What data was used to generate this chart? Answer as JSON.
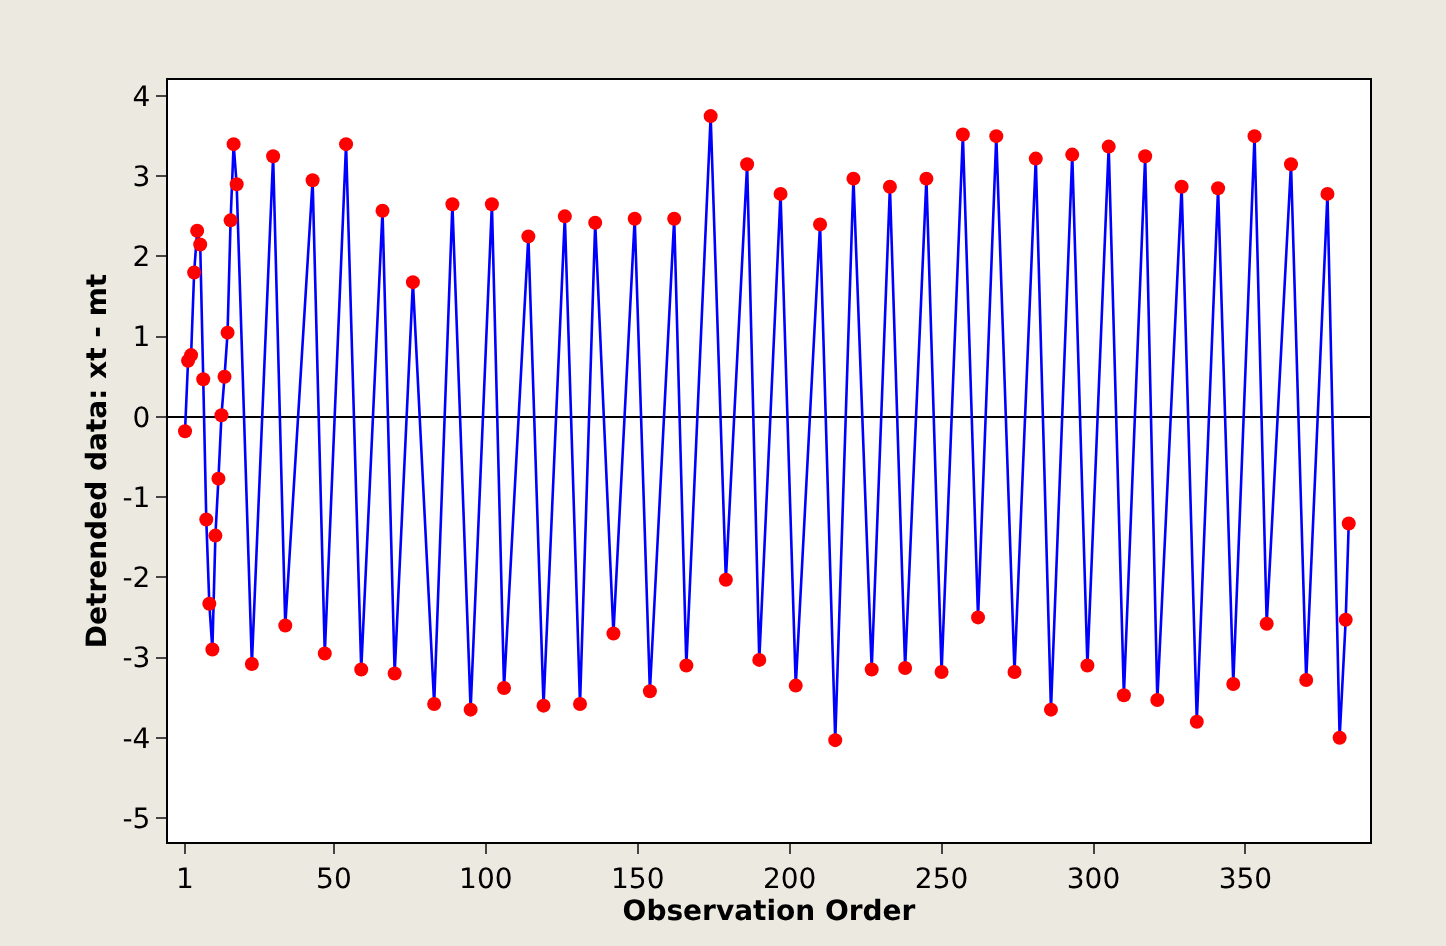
{
  "chart_data": {
    "type": "line",
    "xlabel": "Observation Order",
    "ylabel": "Detrended data: xt - mt",
    "series": [
      {
        "color": "#0000ff",
        "colors": [
          "#ff0000",
          "#ff0000",
          "#ff0000",
          "#ff0000",
          "#ff0000",
          "#ff0000",
          "#ff0000",
          "#ff0000",
          "#ff0000",
          "#ff0000",
          "#ff0000",
          "#ff0000",
          "#ff0000",
          "#ff0000",
          "#ff0000",
          "#ff0000",
          "#ff0000",
          "#ff0000",
          "#ff0000",
          "#ff0000",
          "#ff0000",
          "#ff0000",
          "#ff0000",
          "#ff0000",
          "#ff0000",
          "#ff0000",
          "#ff0000",
          "#ff0000",
          "#ff0000",
          "#ff0000",
          "#ff0000",
          "#ff0000",
          "#ff0000",
          "#ff0000",
          "#ff0000",
          "#ff0000",
          "#ff0000",
          "#ff0000",
          "#ff0000",
          "#ff0000",
          "#ff0000",
          "#ff0000",
          "#ff0000",
          "#ff0000",
          "#ff0000",
          "#ff0000",
          "#ff0000",
          "#ff0000",
          "#ff0000",
          "#ff0000",
          "#ff0000",
          "#ff0000",
          "#ff0000",
          "#ff0000",
          "#ff0000",
          "#ff0000",
          "#ff0000",
          "#ff0000",
          "#ff0000",
          "#ff0000",
          "#ff0000",
          "#ff0000",
          "#ff0000",
          "#ff0000",
          "#ff0000",
          "#ff0000",
          "#ff0000",
          "#ff0000",
          "#ff0000",
          "#ff0000",
          "#ff0000",
          "#ff0000",
          "#ff0000",
          "#ff0000",
          "#ff0000",
          "#ff0000",
          "#ff0000",
          "#ff0000",
          "#ff0000",
          "#ff0000",
          "#ff0000"
        ],
        "x": [
          1,
          2,
          3,
          4,
          5,
          6,
          7,
          8,
          9,
          10,
          11,
          12,
          13,
          14,
          15,
          16,
          17,
          18,
          23,
          30,
          34,
          43,
          47,
          54,
          59,
          66,
          70,
          76,
          83,
          89,
          95,
          102,
          106,
          114,
          119,
          126,
          131,
          136,
          142,
          149,
          154,
          162,
          166,
          174,
          179,
          186,
          190,
          197,
          202,
          210,
          215,
          221,
          227,
          233,
          238,
          245,
          250,
          257,
          262,
          268,
          274,
          281,
          286,
          293,
          298,
          305,
          310,
          317,
          321,
          329,
          334,
          341,
          346,
          353,
          357,
          365,
          370,
          377,
          381,
          383,
          384
        ],
        "values": [
          -0.18,
          0.7,
          0.77,
          1.8,
          2.32,
          2.15,
          0.47,
          -1.28,
          -2.33,
          -2.9,
          -1.48,
          -0.77,
          0.02,
          0.5,
          1.05,
          2.45,
          3.4,
          2.9,
          -3.08,
          3.25,
          -2.6,
          2.95,
          -2.95,
          3.4,
          -3.15,
          2.57,
          -3.2,
          1.68,
          -3.58,
          2.65,
          -3.65,
          2.65,
          -3.38,
          2.25,
          -3.6,
          2.5,
          -3.58,
          2.42,
          -2.7,
          2.47,
          -3.42,
          2.47,
          -3.1,
          3.75,
          -2.03,
          3.15,
          -3.03,
          2.78,
          -3.35,
          2.4,
          -4.03,
          2.97,
          -3.15,
          2.87,
          -3.13,
          2.97,
          -3.18,
          3.52,
          -2.5,
          3.5,
          -3.18,
          3.22,
          -3.65,
          3.27,
          -3.1,
          3.37,
          -3.47,
          3.25,
          -3.53,
          2.87,
          -3.8,
          2.85,
          -3.33,
          3.5,
          -2.58,
          3.15,
          -3.28,
          2.78,
          -4.0,
          -2.53,
          -1.33
        ]
      }
    ],
    "xlim": [
      -4.6,
      391
    ],
    "xticks": [
      1,
      50,
      100,
      150,
      200,
      250,
      300,
      350
    ],
    "ylim": [
      -5.3,
      4.2
    ],
    "yticks": [
      -5,
      -4,
      -3,
      -2,
      -1,
      0,
      1,
      2,
      3,
      4
    ],
    "ref_lines": [
      {
        "axis": "y",
        "value": 0,
        "color": "#000000"
      }
    ],
    "marker": "circle",
    "line_style": "solid",
    "grid": false
  }
}
